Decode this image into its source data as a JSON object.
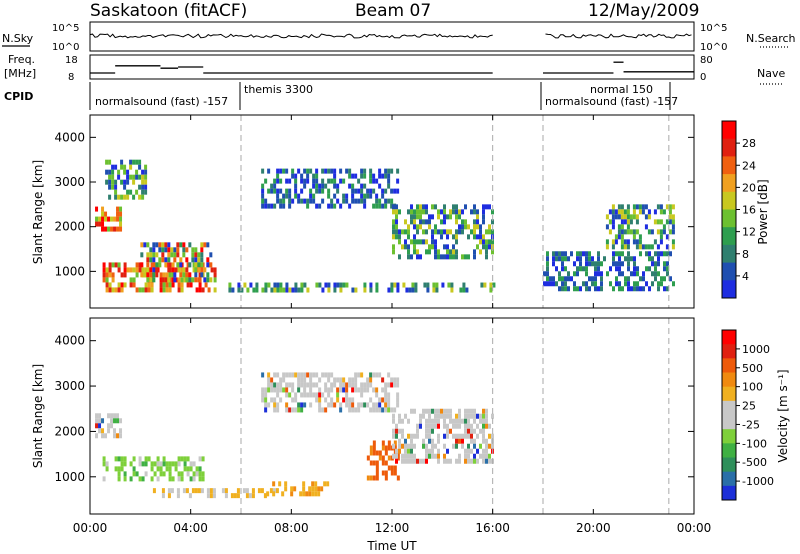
{
  "header": {
    "station": "Saskatoon (fitACF)",
    "beam": "Beam 07",
    "date": "12/May/2009"
  },
  "top_panels": {
    "nsky_label": "N.Sky",
    "nsky_ticks": [
      "10^5",
      "10^0"
    ],
    "nsearch_label": "N.Search",
    "freq_label": "Freq.",
    "freq_unit": "[MHz]",
    "freq_ticks": [
      "18",
      "8"
    ],
    "nave_label": "Nave",
    "nave_ticks": [
      "80",
      "0"
    ],
    "cpid_label": "CPID",
    "cpid_entries": [
      {
        "text": "normalsound (fast) -157",
        "t": 0
      },
      {
        "text": "themis 3300",
        "t": 6
      },
      {
        "text": "normal 150",
        "t": 18
      },
      {
        "text": "normalsound (fast) -157",
        "t": 18
      }
    ]
  },
  "x_axis": {
    "label": "Time UT",
    "ticks": [
      "00:00",
      "04:00",
      "08:00",
      "12:00",
      "16:00",
      "20:00",
      "00:00"
    ]
  },
  "y_axis": {
    "label": "Slant Range [km]",
    "ticks": [
      "1000",
      "2000",
      "3000",
      "4000"
    ]
  },
  "colorbars": {
    "power": {
      "label": "Power [dB]",
      "ticks": [
        "4",
        "8",
        "12",
        "16",
        "20",
        "24",
        "28"
      ],
      "colors": [
        "#1e2de0",
        "#1f4fb0",
        "#2f7f6f",
        "#2e9e4f",
        "#6cc030",
        "#c8c820",
        "#f0a020",
        "#f06010",
        "#e02010",
        "#ff0000"
      ]
    },
    "velocity": {
      "label": "Velocity [m s⁻¹]",
      "ticks": [
        "1000",
        "500",
        "100",
        "25",
        "-25",
        "-100",
        "-500",
        "-1000"
      ],
      "colors": [
        "#1c2fd8",
        "#2a6fa8",
        "#2e8f5a",
        "#3fb043",
        "#7ed03a",
        "#c8c8c8",
        "#c8c8c8",
        "#f0b020",
        "#f08a10",
        "#ee5a0a",
        "#e02010",
        "#ff0000"
      ]
    }
  },
  "chart_data": {
    "type": "heatmap",
    "x_range_hours": [
      0,
      24
    ],
    "y_range_km": [
      180,
      4500
    ],
    "data_gaps_hours": [
      [
        16,
        18
      ]
    ],
    "dashed_markers_hours": [
      6,
      16,
      18,
      23
    ],
    "cpid_switch_hours": [
      6,
      18
    ],
    "freq_mhz_segments": [
      [
        0,
        1,
        10.5
      ],
      [
        1,
        2.8,
        13.5
      ],
      [
        2.8,
        3.5,
        12.5
      ],
      [
        3.5,
        4.5,
        13
      ],
      [
        4.5,
        16,
        10.5
      ],
      [
        18,
        20.8,
        10.5
      ],
      [
        20.8,
        21.2,
        15
      ],
      [
        21.2,
        24,
        11
      ]
    ],
    "power_echo_regions": [
      {
        "t": [
          0.2,
          1.2
        ],
        "r": [
          1900,
          2450
        ],
        "level": "high"
      },
      {
        "t": [
          0.6,
          2.2
        ],
        "r": [
          2700,
          3500
        ],
        "level": "mid"
      },
      {
        "t": [
          0.5,
          5.0
        ],
        "r": [
          600,
          1200
        ],
        "level": "high"
      },
      {
        "t": [
          2.0,
          4.8
        ],
        "r": [
          850,
          1650
        ],
        "level": "mixed"
      },
      {
        "t": [
          5.5,
          16.0
        ],
        "r": [
          550,
          750
        ],
        "level": "mid"
      },
      {
        "t": [
          6.8,
          12.2
        ],
        "r": [
          2500,
          3300
        ],
        "level": "low"
      },
      {
        "t": [
          12.0,
          16.0
        ],
        "r": [
          1300,
          2500
        ],
        "level": "mid"
      },
      {
        "t": [
          18.0,
          23.2
        ],
        "r": [
          600,
          1450
        ],
        "level": "low"
      },
      {
        "t": [
          20.5,
          23.2
        ],
        "r": [
          1600,
          2500
        ],
        "level": "mid"
      }
    ],
    "velocity_echo_regions": [
      {
        "t": [
          0.2,
          1.2
        ],
        "r": [
          1950,
          2400
        ],
        "v": "low"
      },
      {
        "t": [
          0.5,
          4.5
        ],
        "r": [
          900,
          1450
        ],
        "v": "toward"
      },
      {
        "t": [
          2.5,
          7.5
        ],
        "r": [
          550,
          750
        ],
        "v": "away-slow"
      },
      {
        "t": [
          7.0,
          9.5
        ],
        "r": [
          650,
          900
        ],
        "v": "away"
      },
      {
        "t": [
          11.0,
          12.2
        ],
        "r": [
          1000,
          1800
        ],
        "v": "away-fast"
      },
      {
        "t": [
          6.8,
          12.2
        ],
        "r": [
          2500,
          3300
        ],
        "v": "low"
      },
      {
        "t": [
          12.0,
          16.0
        ],
        "r": [
          1300,
          2500
        ],
        "v": "low"
      }
    ]
  }
}
